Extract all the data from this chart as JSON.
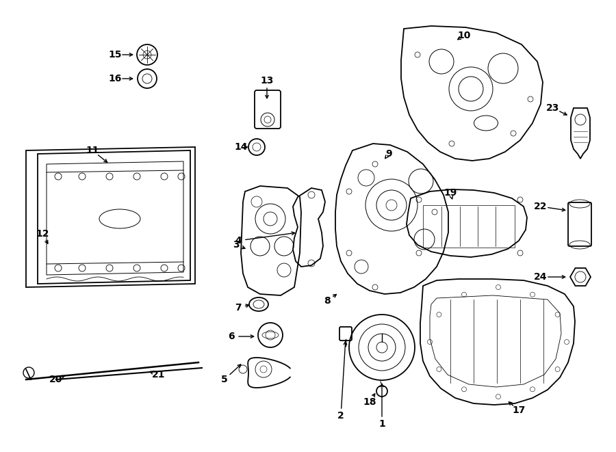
{
  "bg_color": "#ffffff",
  "line_color": "#000000",
  "text_color": "#000000",
  "fig_width": 9.0,
  "fig_height": 6.61,
  "border_color": "#000000"
}
